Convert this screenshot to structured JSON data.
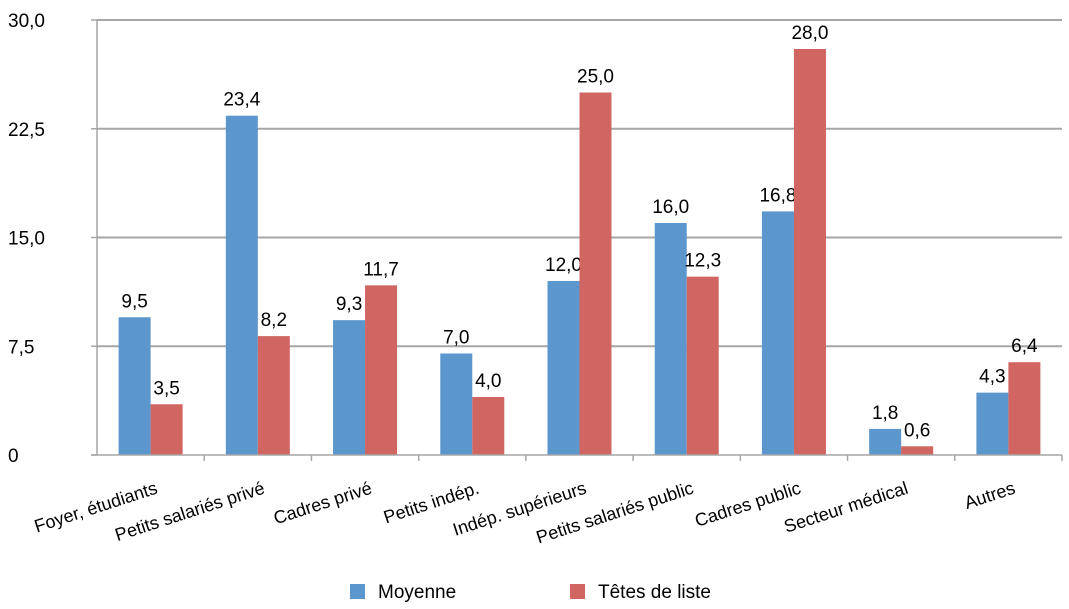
{
  "chart_data": {
    "type": "bar",
    "categories": [
      "Foyer, étudiants",
      "Petits salariés privé",
      "Cadres privé",
      "Petits indép.",
      "Indép. supérieurs",
      "Petits salariés public",
      "Cadres public",
      "Secteur médical",
      "Autres"
    ],
    "series": [
      {
        "name": "Moyenne",
        "color": "#5b96cc",
        "values": [
          9.5,
          23.4,
          9.3,
          7.0,
          12.0,
          16.0,
          16.8,
          1.8,
          4.3
        ],
        "labels": [
          "9,5",
          "23,4",
          "9,3",
          "7,0",
          "12,0",
          "16,0",
          "16,8",
          "1,8",
          "4,3"
        ]
      },
      {
        "name": "Têtes de liste",
        "color": "#d06561",
        "values": [
          3.5,
          8.2,
          11.7,
          4.0,
          25.0,
          12.3,
          28.0,
          0.6,
          6.4
        ],
        "labels": [
          "3,5",
          "8,2",
          "11,7",
          "4,0",
          "25,0",
          "12,3",
          "28,0",
          "0,6",
          "6,4"
        ]
      }
    ],
    "y_ticks": [
      {
        "value": 0,
        "label": "0"
      },
      {
        "value": 7.5,
        "label": "7,5"
      },
      {
        "value": 15,
        "label": "15,0"
      },
      {
        "value": 22.5,
        "label": "22,5"
      },
      {
        "value": 30,
        "label": "30,0"
      }
    ],
    "ylim": [
      0,
      30
    ],
    "grid": true,
    "legend_position": "bottom",
    "gridline_color": "#a6a6a6"
  }
}
